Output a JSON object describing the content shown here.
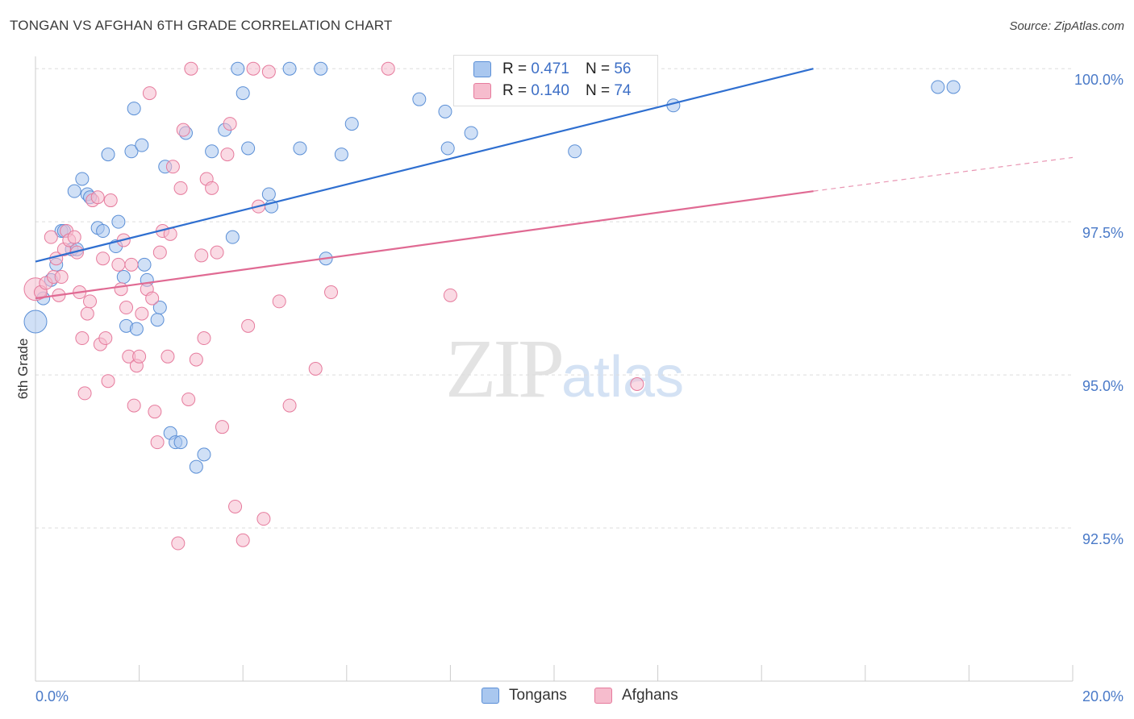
{
  "title": "TONGAN VS AFGHAN 6TH GRADE CORRELATION CHART",
  "source": "Source: ZipAtlas.com",
  "watermark": {
    "zip": "ZIP",
    "atlas": "atlas"
  },
  "legend": {
    "rows": [
      {
        "r_label": "R =",
        "r_value": "0.471",
        "n_label": "N =",
        "n_value": "56"
      },
      {
        "r_label": "R =",
        "r_value": "0.140",
        "n_label": "N =",
        "n_value": "74"
      }
    ]
  },
  "bottom_legend": [
    "Tongans",
    "Afghans"
  ],
  "colors": {
    "tongan_fill": "#a9c7ef",
    "tongan_stroke": "#5b8fd6",
    "tongan_line": "#2f6fd0",
    "afghan_fill": "#f6bccd",
    "afghan_stroke": "#e67b9d",
    "afghan_line": "#e06a93",
    "grid": "#dddddd",
    "tick_text": "#4a7ac8"
  },
  "chart_data": {
    "type": "scatter",
    "title": "TONGAN VS AFGHAN 6TH GRADE CORRELATION CHART",
    "xlabel": "",
    "ylabel": "6th Grade",
    "xlim": [
      0,
      20
    ],
    "ylim": [
      90.0,
      100.2
    ],
    "x_tick_labels": [
      "0.0%",
      "20.0%"
    ],
    "y_ticks": [
      92.5,
      95.0,
      97.5,
      100.0
    ],
    "y_tick_labels": [
      "92.5%",
      "95.0%",
      "97.5%",
      "100.0%"
    ],
    "grid": true,
    "legend_position": "bottom",
    "series": [
      {
        "name": "Tongans",
        "r": 0.471,
        "n": 56,
        "trend": {
          "x": [
            0.0,
            15.0
          ],
          "y": [
            96.85,
            100.0
          ]
        },
        "points": [
          [
            0.0,
            95.87
          ],
          [
            0.15,
            96.25
          ],
          [
            0.3,
            96.55
          ],
          [
            0.4,
            96.8
          ],
          [
            0.5,
            97.35
          ],
          [
            0.55,
            97.35
          ],
          [
            0.7,
            97.05
          ],
          [
            0.8,
            97.05
          ],
          [
            0.75,
            98.0
          ],
          [
            0.9,
            98.2
          ],
          [
            1.0,
            97.95
          ],
          [
            1.05,
            97.9
          ],
          [
            1.2,
            97.4
          ],
          [
            1.3,
            97.35
          ],
          [
            1.4,
            98.6
          ],
          [
            1.55,
            97.1
          ],
          [
            1.6,
            97.5
          ],
          [
            1.7,
            96.6
          ],
          [
            1.75,
            95.8
          ],
          [
            1.85,
            98.65
          ],
          [
            1.9,
            99.35
          ],
          [
            1.95,
            95.75
          ],
          [
            2.05,
            98.75
          ],
          [
            2.1,
            96.8
          ],
          [
            2.15,
            96.55
          ],
          [
            2.35,
            95.9
          ],
          [
            2.4,
            96.1
          ],
          [
            2.5,
            98.4
          ],
          [
            2.6,
            94.05
          ],
          [
            2.7,
            93.9
          ],
          [
            2.8,
            93.9
          ],
          [
            2.9,
            98.95
          ],
          [
            3.1,
            93.5
          ],
          [
            3.25,
            93.7
          ],
          [
            3.4,
            98.65
          ],
          [
            3.65,
            99.0
          ],
          [
            3.8,
            97.25
          ],
          [
            3.9,
            100.0
          ],
          [
            4.0,
            99.6
          ],
          [
            4.1,
            98.7
          ],
          [
            4.5,
            97.95
          ],
          [
            4.55,
            97.75
          ],
          [
            4.9,
            100.0
          ],
          [
            5.1,
            98.7
          ],
          [
            5.5,
            100.0
          ],
          [
            5.6,
            96.9
          ],
          [
            5.9,
            98.6
          ],
          [
            6.1,
            99.1
          ],
          [
            7.4,
            99.5
          ],
          [
            7.9,
            99.3
          ],
          [
            7.95,
            98.7
          ],
          [
            8.4,
            98.95
          ],
          [
            10.4,
            98.65
          ],
          [
            12.3,
            99.4
          ],
          [
            17.4,
            99.7
          ],
          [
            17.7,
            99.7
          ]
        ]
      },
      {
        "name": "Afghans",
        "r": 0.14,
        "n": 74,
        "trend": {
          "x": [
            0.0,
            15.0
          ],
          "y": [
            96.25,
            98.0
          ]
        },
        "trend_dashed": {
          "x": [
            15.0,
            20.0
          ],
          "y": [
            98.0,
            98.55
          ]
        },
        "points": [
          [
            0.0,
            96.4
          ],
          [
            0.1,
            96.35
          ],
          [
            0.2,
            96.5
          ],
          [
            0.3,
            97.25
          ],
          [
            0.35,
            96.6
          ],
          [
            0.4,
            96.9
          ],
          [
            0.45,
            96.3
          ],
          [
            0.5,
            96.6
          ],
          [
            0.55,
            97.05
          ],
          [
            0.6,
            97.35
          ],
          [
            0.65,
            97.2
          ],
          [
            0.75,
            97.25
          ],
          [
            0.8,
            97.0
          ],
          [
            0.85,
            96.35
          ],
          [
            0.9,
            95.6
          ],
          [
            0.95,
            94.7
          ],
          [
            1.0,
            96.0
          ],
          [
            1.05,
            96.2
          ],
          [
            1.1,
            97.85
          ],
          [
            1.2,
            97.9
          ],
          [
            1.25,
            95.5
          ],
          [
            1.3,
            96.9
          ],
          [
            1.35,
            95.6
          ],
          [
            1.4,
            94.9
          ],
          [
            1.45,
            97.85
          ],
          [
            1.6,
            96.8
          ],
          [
            1.65,
            96.4
          ],
          [
            1.7,
            97.2
          ],
          [
            1.75,
            96.1
          ],
          [
            1.8,
            95.3
          ],
          [
            1.85,
            96.8
          ],
          [
            1.9,
            94.5
          ],
          [
            1.95,
            95.15
          ],
          [
            2.0,
            95.3
          ],
          [
            2.05,
            96.0
          ],
          [
            2.15,
            96.4
          ],
          [
            2.2,
            99.6
          ],
          [
            2.25,
            96.25
          ],
          [
            2.3,
            94.4
          ],
          [
            2.35,
            93.9
          ],
          [
            2.4,
            97.0
          ],
          [
            2.45,
            97.35
          ],
          [
            2.55,
            95.3
          ],
          [
            2.6,
            97.3
          ],
          [
            2.65,
            98.4
          ],
          [
            2.75,
            92.25
          ],
          [
            2.8,
            98.05
          ],
          [
            2.85,
            99.0
          ],
          [
            2.95,
            94.6
          ],
          [
            3.0,
            100.0
          ],
          [
            3.1,
            95.25
          ],
          [
            3.2,
            96.95
          ],
          [
            3.25,
            95.6
          ],
          [
            3.3,
            98.2
          ],
          [
            3.4,
            98.05
          ],
          [
            3.5,
            97.0
          ],
          [
            3.6,
            94.15
          ],
          [
            3.7,
            98.6
          ],
          [
            3.75,
            99.1
          ],
          [
            3.85,
            92.85
          ],
          [
            4.0,
            92.3
          ],
          [
            4.1,
            95.8
          ],
          [
            4.2,
            100.0
          ],
          [
            4.3,
            97.75
          ],
          [
            4.4,
            92.65
          ],
          [
            4.5,
            99.95
          ],
          [
            4.7,
            96.2
          ],
          [
            4.9,
            94.5
          ],
          [
            5.4,
            95.1
          ],
          [
            5.7,
            96.35
          ],
          [
            6.8,
            100.0
          ],
          [
            8.0,
            96.3
          ],
          [
            10.4,
            100.0
          ],
          [
            11.6,
            94.85
          ]
        ]
      }
    ]
  }
}
